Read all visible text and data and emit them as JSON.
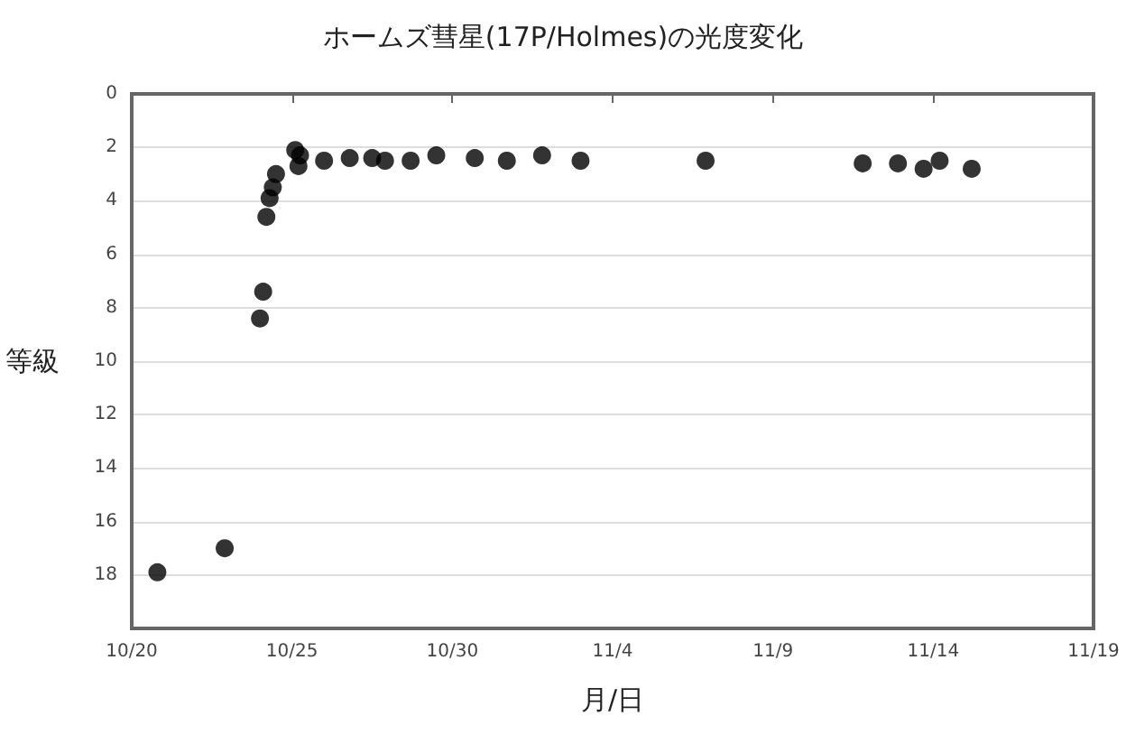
{
  "chart_data": {
    "type": "scatter",
    "title": "ホームズ彗星(17P/Holmes)の光度変化",
    "xlabel": "月/日",
    "ylabel": "等級",
    "x": [
      "--10-20T19:12",
      "--10-22T21:36",
      "--10-24T00:00",
      "--10-24T02:24",
      "--10-24T04:48",
      "--10-24T07:12",
      "--10-24T09:36",
      "--10-24T12:00",
      "--10-25T02:24",
      "--10-25T04:48",
      "--10-25T06:00",
      "--10-26T00:00",
      "--10-26T19:12",
      "--10-27T12:00",
      "--10-27T21:36",
      "--10-28T16:48",
      "--10-29T12:00",
      "--10-30T16:48",
      "--10-31T16:48",
      "--11-01T19:12",
      "--11-03T00:00",
      "--11-06T21:36",
      "--11-11T19:12",
      "--11-12T21:36",
      "--11-13T16:48",
      "--11-14T04:48",
      "--11-15T04:48"
    ],
    "series": [
      {
        "color": "#000000",
        "values": [
          17.9,
          17.0,
          8.4,
          7.4,
          4.6,
          3.9,
          3.5,
          3.0,
          2.1,
          2.7,
          2.3,
          2.5,
          2.4,
          2.4,
          2.5,
          2.5,
          2.3,
          2.4,
          2.5,
          2.3,
          2.5,
          2.5,
          2.6,
          2.6,
          2.8,
          2.5,
          2.8
        ]
      }
    ],
    "xlim": [
      "--10-20",
      "--11-19"
    ],
    "xticks": [
      {
        "value": "--10-20",
        "label": "10/20"
      },
      {
        "value": "--10-25",
        "label": "10/25"
      },
      {
        "value": "--10-30",
        "label": "10/30"
      },
      {
        "value": "--11-04",
        "label": "11/4"
      },
      {
        "value": "--11-09",
        "label": "11/9"
      },
      {
        "value": "--11-14",
        "label": "11/14"
      },
      {
        "value": "--11-19",
        "label": "11/19"
      }
    ],
    "ylim": [
      20,
      0
    ],
    "yticks": [
      0,
      2,
      4,
      6,
      8,
      10,
      12,
      14,
      16,
      18
    ],
    "grid": "y",
    "marker": "circle"
  }
}
